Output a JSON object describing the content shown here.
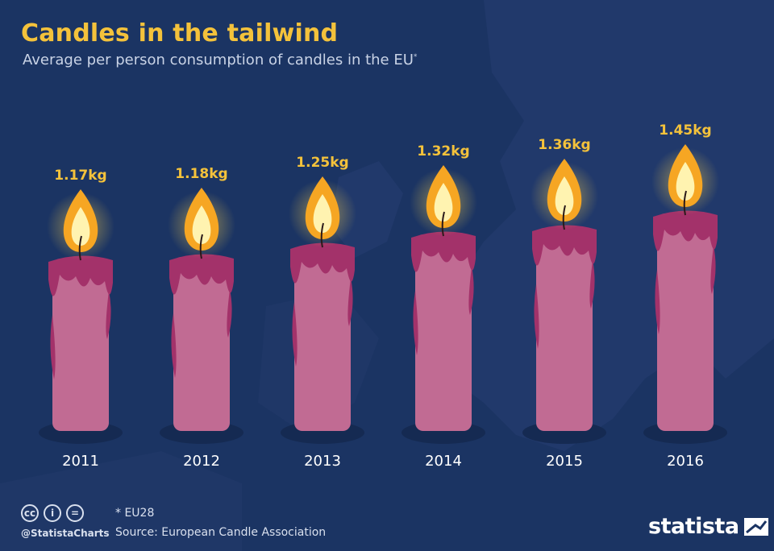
{
  "header": {
    "title": "Candles in the tailwind",
    "subtitle": "Average per person consumption of candles in the EU",
    "subtitle_mark": "*"
  },
  "footer": {
    "license_icons": [
      "creative-commons-icon",
      "attribution-icon",
      "no-derivatives-icon"
    ],
    "license_glyphs": [
      "cc",
      "i",
      "="
    ],
    "handle": "@StatistaCharts",
    "note": "* EU28",
    "source": "Source: European Candle Association",
    "brand": "statista"
  },
  "colors": {
    "background": "#1b3463",
    "title": "#f4c23b",
    "value_label": "#f4c23b",
    "candle_body": "#c16b93",
    "candle_drip": "#a3326a",
    "flame_outer": "#f6a623",
    "flame_inner": "#fff3b0"
  },
  "chart_data": {
    "type": "bar",
    "categories": [
      "2011",
      "2012",
      "2013",
      "2014",
      "2015",
      "2016"
    ],
    "values": [
      1.17,
      1.18,
      1.25,
      1.32,
      1.36,
      1.45
    ],
    "value_labels": [
      "1.17kg",
      "1.18kg",
      "1.25kg",
      "1.32kg",
      "1.36kg",
      "1.45kg"
    ],
    "unit": "kg",
    "title": "Candles in the tailwind",
    "xlabel": "",
    "ylabel": "",
    "grid": false,
    "legend": "none"
  }
}
